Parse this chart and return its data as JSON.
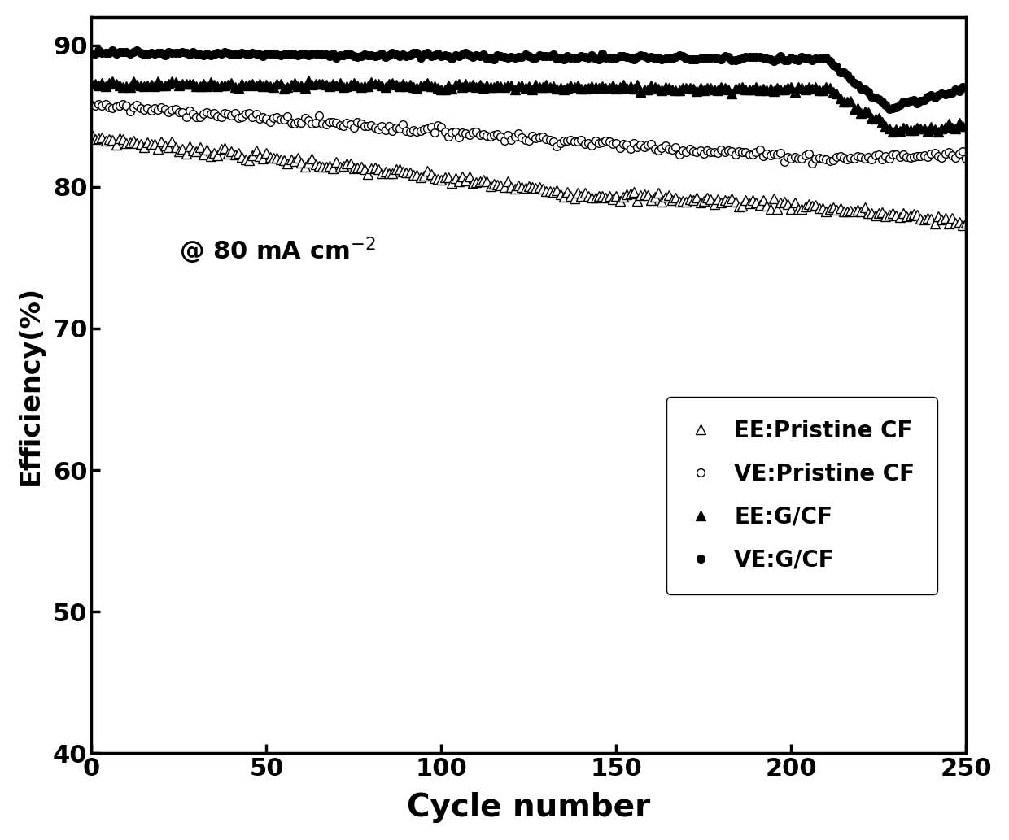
{
  "xlabel": "Cycle number",
  "ylabel": "Efficiency(%)",
  "xlim": [
    0,
    250
  ],
  "ylim": [
    40,
    92
  ],
  "yticks": [
    40,
    50,
    60,
    70,
    80,
    90
  ],
  "xticks": [
    0,
    50,
    100,
    150,
    200,
    250
  ],
  "xlabel_fontsize": 28,
  "ylabel_fontsize": 24,
  "tick_fontsize": 22,
  "annotation_fontsize": 22,
  "legend_fontsize": 20,
  "series": [
    {
      "key": "EE_Pristine_CF",
      "label": "EE:Pristine CF",
      "marker": "^",
      "filled": false,
      "start_val": 83.5,
      "mid_val": 79.5,
      "end_val": 77.5,
      "noise": 0.18,
      "trend": "decline_then_scatter",
      "inflection1": 140,
      "inflection2": 200
    },
    {
      "key": "VE_Pristine_CF",
      "label": "VE:Pristine CF",
      "marker": "o",
      "filled": false,
      "start_val": 85.8,
      "mid_val": 83.0,
      "end_val": 82.3,
      "noise": 0.15,
      "trend": "gradual_decline",
      "inflection1": 150,
      "inflection2": 210
    },
    {
      "key": "EE_GCF",
      "label": "EE:G/CF",
      "marker": "^",
      "filled": true,
      "start_val": 87.3,
      "mid_val": 86.8,
      "end_val": 84.0,
      "noise": 0.12,
      "trend": "flat_then_drop",
      "inflection1": 210,
      "inflection2": 230
    },
    {
      "key": "VE_GCF",
      "label": "VE:G/CF",
      "marker": "o",
      "filled": true,
      "start_val": 89.5,
      "mid_val": 89.0,
      "end_val": 87.0,
      "noise": 0.1,
      "trend": "mostly_flat_dip",
      "inflection1": 210,
      "inflection2": 228
    }
  ]
}
